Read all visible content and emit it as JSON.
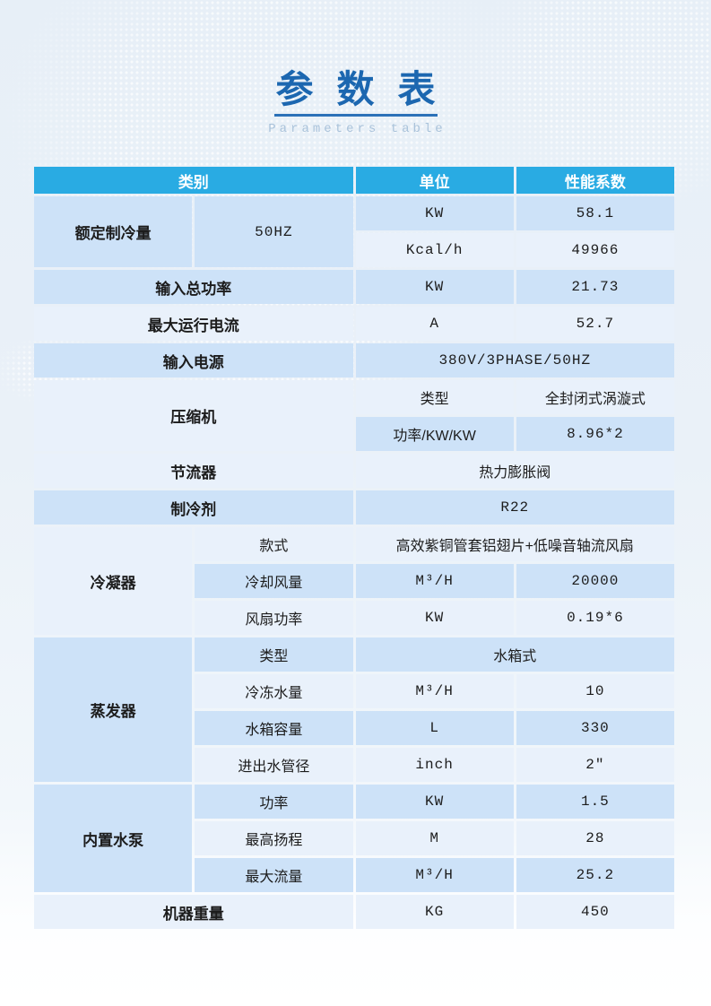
{
  "page": {
    "title_zh": "参数表",
    "title_en": "Parameters table"
  },
  "colors": {
    "header_bg": "#29ABE3",
    "row_blue": "#CDE2F8",
    "row_pale": "#E9F1FB",
    "title_blue": "#1C67B0",
    "underline_blue": "#2B71B8",
    "subtitle_color": "#A9C2DA"
  },
  "table": {
    "header": {
      "category": "类别",
      "unit": "单位",
      "coefficient": "性能系数"
    },
    "rated_cooling": {
      "label": "额定制冷量",
      "condition": "50HZ",
      "row1": {
        "unit": "KW",
        "value": "58.1"
      },
      "row2": {
        "unit": "Kcal/h",
        "value": "49966"
      }
    },
    "total_input_power": {
      "label": "输入总功率",
      "unit": "KW",
      "value": "21.73"
    },
    "max_running_current": {
      "label": "最大运行电流",
      "unit": "A",
      "value": "52.7"
    },
    "input_power_supply": {
      "label": "输入电源",
      "value": "380V/3PHASE/50HZ"
    },
    "compressor": {
      "label": "压缩机",
      "row1": {
        "attr": "类型",
        "value": "全封闭式涡漩式"
      },
      "row2": {
        "attr": "功率/KW/KW",
        "value": "8.96*2"
      }
    },
    "throttle": {
      "label": "节流器",
      "value": "热力膨胀阀"
    },
    "refrigerant": {
      "label": "制冷剂",
      "value": "R22"
    },
    "condenser": {
      "label": "冷凝器",
      "row1": {
        "attr": "款式",
        "value": "高效紫铜管套铝翅片+低噪音轴流风扇"
      },
      "row2": {
        "attr": "冷却风量",
        "unit": "M³/H",
        "value": "20000"
      },
      "row3": {
        "attr": "风扇功率",
        "unit": "KW",
        "value": "0.19*6"
      }
    },
    "evaporator": {
      "label": "蒸发器",
      "row1": {
        "attr": "类型",
        "value": "水箱式"
      },
      "row2": {
        "attr": "冷冻水量",
        "unit": "M³/H",
        "value": "10"
      },
      "row3": {
        "attr": "水箱容量",
        "unit": "L",
        "value": "330"
      },
      "row4": {
        "attr": "进出水管径",
        "unit": "inch",
        "value": "2″"
      }
    },
    "builtin_pump": {
      "label": "内置水泵",
      "row1": {
        "attr": "功率",
        "unit": "KW",
        "value": "1.5"
      },
      "row2": {
        "attr": "最高扬程",
        "unit": "M",
        "value": "28"
      },
      "row3": {
        "attr": "最大流量",
        "unit": "M³/H",
        "value": "25.2"
      }
    },
    "machine_weight": {
      "label": "机器重量",
      "unit": "KG",
      "value": "450"
    }
  }
}
